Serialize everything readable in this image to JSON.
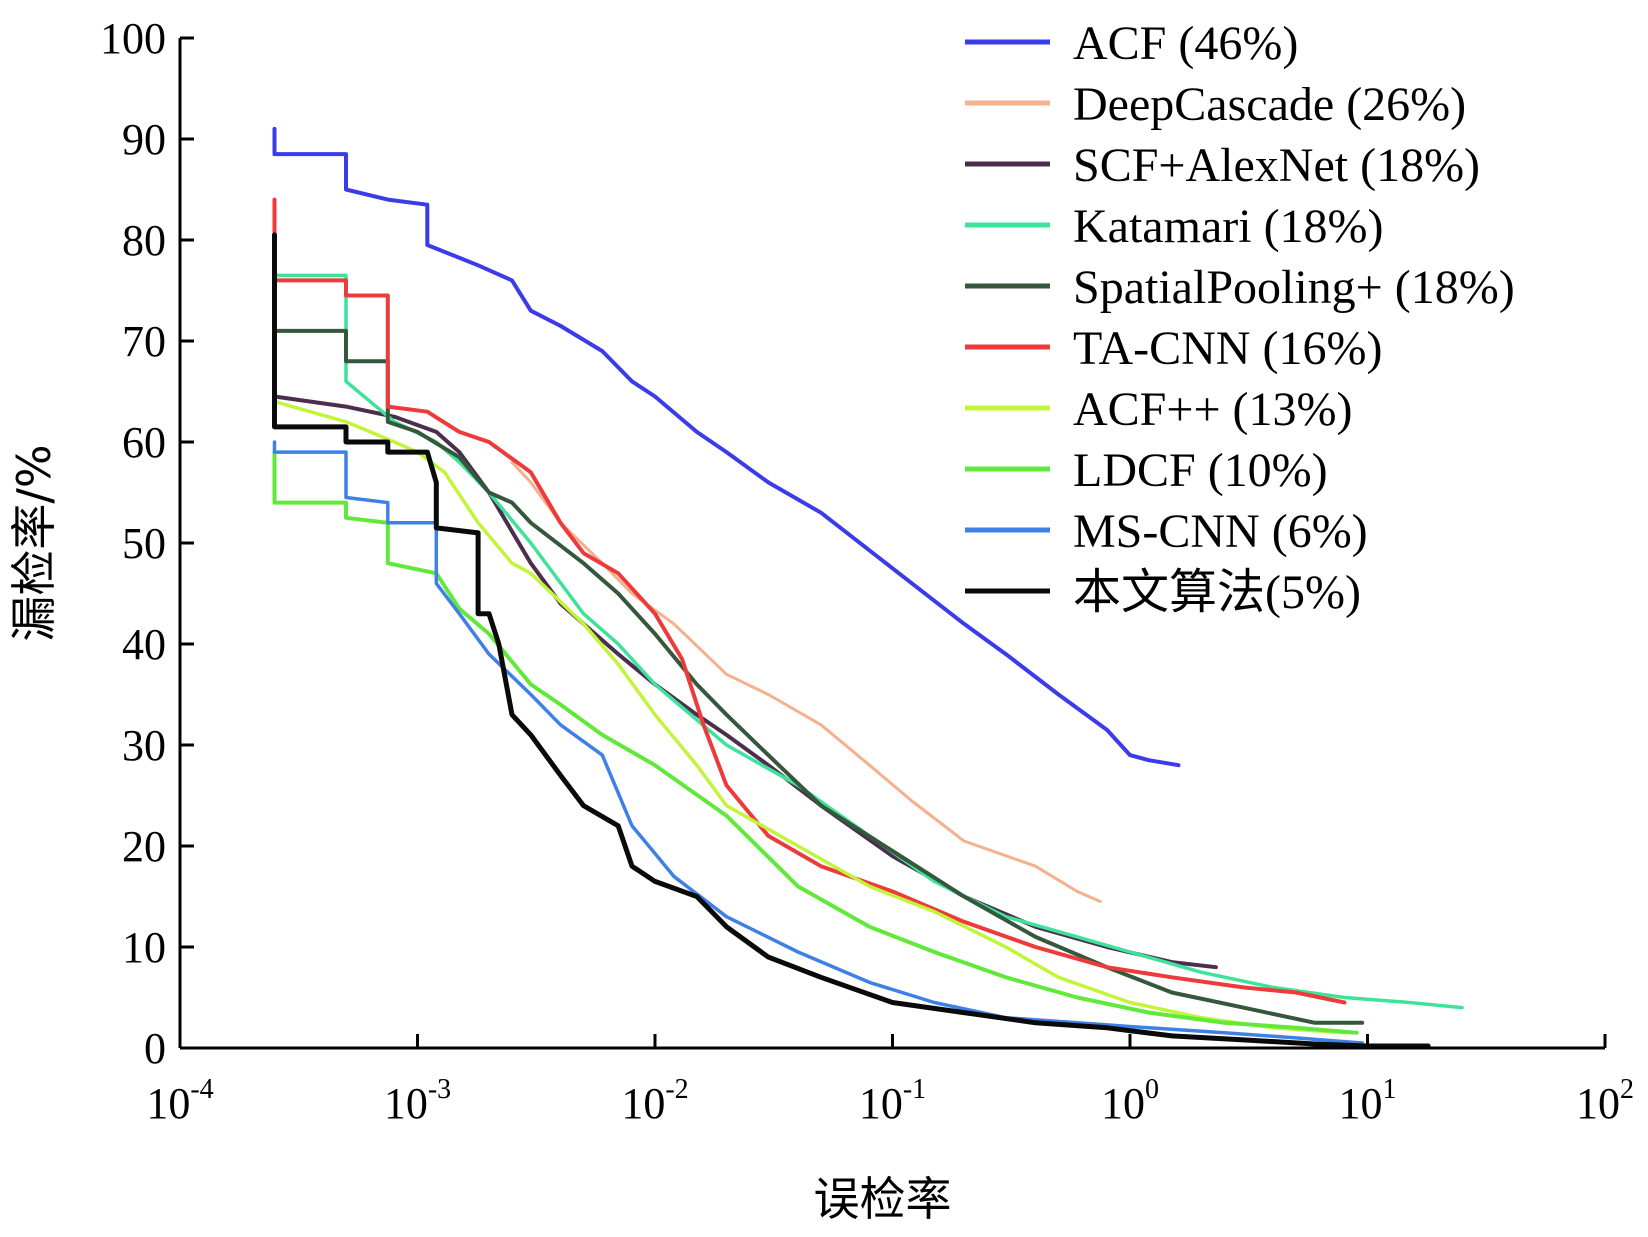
{
  "chart_data": {
    "type": "line",
    "xlabel": "误检率",
    "ylabel": "漏检率/%",
    "x_scale": "log",
    "xlim": [
      0.0001,
      100
    ],
    "ylim": [
      0,
      100
    ],
    "x_ticks": [
      {
        "value": 0.0001,
        "base": "10",
        "exp": "-4"
      },
      {
        "value": 0.001,
        "base": "10",
        "exp": "-3"
      },
      {
        "value": 0.01,
        "base": "10",
        "exp": "-2"
      },
      {
        "value": 0.1,
        "base": "10",
        "exp": "-1"
      },
      {
        "value": 1,
        "base": "10",
        "exp": "0"
      },
      {
        "value": 10,
        "base": "10",
        "exp": "1"
      },
      {
        "value": 100,
        "base": "10",
        "exp": "2"
      }
    ],
    "y_ticks": [
      "0",
      "10",
      "20",
      "30",
      "40",
      "50",
      "60",
      "70",
      "80",
      "90",
      "100"
    ],
    "grid": false,
    "legend_position": "top-right",
    "series": [
      {
        "name": "ACF (46%)",
        "color": "#3b3bea",
        "width": 4,
        "points": [
          [
            0.00025,
            91
          ],
          [
            0.00025,
            88.5
          ],
          [
            0.0005,
            88.5
          ],
          [
            0.0005,
            85
          ],
          [
            0.00075,
            84
          ],
          [
            0.0011,
            83.5
          ],
          [
            0.0011,
            79.5
          ],
          [
            0.0018,
            77.5
          ],
          [
            0.0025,
            76
          ],
          [
            0.003,
            73
          ],
          [
            0.004,
            71.5
          ],
          [
            0.006,
            69
          ],
          [
            0.008,
            66
          ],
          [
            0.01,
            64.5
          ],
          [
            0.015,
            61
          ],
          [
            0.02,
            59
          ],
          [
            0.03,
            56
          ],
          [
            0.05,
            53
          ],
          [
            0.1,
            47.5
          ],
          [
            0.2,
            42
          ],
          [
            0.3,
            39
          ],
          [
            0.5,
            35
          ],
          [
            0.8,
            31.5
          ],
          [
            1.0,
            29
          ],
          [
            1.2,
            28.5
          ],
          [
            1.6,
            28
          ]
        ]
      },
      {
        "name": "DeepCascade (26%)",
        "color": "#f5b08c",
        "width": 3,
        "points": [
          [
            0.0025,
            58
          ],
          [
            0.003,
            56
          ],
          [
            0.004,
            52
          ],
          [
            0.006,
            48
          ],
          [
            0.008,
            45
          ],
          [
            0.012,
            42
          ],
          [
            0.02,
            37
          ],
          [
            0.03,
            35
          ],
          [
            0.05,
            32
          ],
          [
            0.08,
            28
          ],
          [
            0.12,
            24.5
          ],
          [
            0.2,
            20.5
          ],
          [
            0.4,
            18
          ],
          [
            0.6,
            15.5
          ],
          [
            0.75,
            14.5
          ]
        ]
      },
      {
        "name": "SCF+AlexNet (18%)",
        "color": "#4d2d4e",
        "width": 4,
        "points": [
          [
            0.00025,
            66
          ],
          [
            0.00025,
            64.5
          ],
          [
            0.0005,
            63.5
          ],
          [
            0.0008,
            62.5
          ],
          [
            0.0012,
            61
          ],
          [
            0.0015,
            59
          ],
          [
            0.002,
            55
          ],
          [
            0.003,
            48
          ],
          [
            0.004,
            44
          ],
          [
            0.005,
            42
          ],
          [
            0.007,
            39
          ],
          [
            0.01,
            36
          ],
          [
            0.015,
            33
          ],
          [
            0.02,
            31
          ],
          [
            0.03,
            28
          ],
          [
            0.05,
            24
          ],
          [
            0.1,
            19
          ],
          [
            0.2,
            15
          ],
          [
            0.4,
            12
          ],
          [
            0.8,
            10
          ],
          [
            1.5,
            8.5
          ],
          [
            2.3,
            8
          ]
        ]
      },
      {
        "name": "Katamari (18%)",
        "color": "#3de39a",
        "width": 3.5,
        "points": [
          [
            0.00025,
            76.5
          ],
          [
            0.0005,
            76.5
          ],
          [
            0.0005,
            66
          ],
          [
            0.0008,
            62
          ],
          [
            0.0012,
            60
          ],
          [
            0.0015,
            58
          ],
          [
            0.002,
            55
          ],
          [
            0.003,
            50
          ],
          [
            0.005,
            43
          ],
          [
            0.007,
            40
          ],
          [
            0.01,
            36
          ],
          [
            0.02,
            30
          ],
          [
            0.04,
            26
          ],
          [
            0.08,
            21
          ],
          [
            0.15,
            16.5
          ],
          [
            0.3,
            13
          ],
          [
            0.6,
            11
          ],
          [
            1.0,
            9.5
          ],
          [
            2.0,
            7.5
          ],
          [
            4.0,
            6
          ],
          [
            8.0,
            5
          ],
          [
            15,
            4.5
          ],
          [
            25,
            4
          ]
        ]
      },
      {
        "name": "SpatialPooling+ (18%)",
        "color": "#35573b",
        "width": 4,
        "points": [
          [
            0.00025,
            71
          ],
          [
            0.0005,
            71
          ],
          [
            0.0005,
            68
          ],
          [
            0.00075,
            68
          ],
          [
            0.00075,
            62
          ],
          [
            0.001,
            61
          ],
          [
            0.0015,
            58.5
          ],
          [
            0.002,
            55
          ],
          [
            0.0025,
            54
          ],
          [
            0.003,
            52
          ],
          [
            0.005,
            48
          ],
          [
            0.007,
            45
          ],
          [
            0.01,
            41
          ],
          [
            0.015,
            36
          ],
          [
            0.02,
            33
          ],
          [
            0.03,
            29
          ],
          [
            0.05,
            24
          ],
          [
            0.1,
            19.5
          ],
          [
            0.2,
            15
          ],
          [
            0.4,
            11
          ],
          [
            0.8,
            8
          ],
          [
            1.5,
            5.5
          ],
          [
            3,
            4
          ],
          [
            6,
            2.5
          ],
          [
            9.5,
            2.5
          ]
        ]
      },
      {
        "name": "TA-CNN (16%)",
        "color": "#ed3b3b",
        "width": 4,
        "points": [
          [
            0.00025,
            84
          ],
          [
            0.00025,
            76
          ],
          [
            0.0005,
            76
          ],
          [
            0.0005,
            74.5
          ],
          [
            0.00075,
            74.5
          ],
          [
            0.00075,
            63.5
          ],
          [
            0.0011,
            63
          ],
          [
            0.0015,
            61
          ],
          [
            0.002,
            60
          ],
          [
            0.003,
            57
          ],
          [
            0.004,
            52
          ],
          [
            0.005,
            49
          ],
          [
            0.007,
            47
          ],
          [
            0.01,
            43
          ],
          [
            0.013,
            38.5
          ],
          [
            0.016,
            32
          ],
          [
            0.02,
            26
          ],
          [
            0.03,
            21
          ],
          [
            0.05,
            18
          ],
          [
            0.1,
            15.5
          ],
          [
            0.2,
            12.5
          ],
          [
            0.4,
            10
          ],
          [
            0.8,
            8
          ],
          [
            1.5,
            7
          ],
          [
            3,
            6
          ],
          [
            5,
            5.5
          ],
          [
            8,
            4.5
          ]
        ]
      },
      {
        "name": "ACF++ (13%)",
        "color": "#c2f53a",
        "width": 3.5,
        "points": [
          [
            0.00025,
            64
          ],
          [
            0.0005,
            62
          ],
          [
            0.0008,
            60
          ],
          [
            0.001,
            59
          ],
          [
            0.0013,
            57
          ],
          [
            0.0018,
            52
          ],
          [
            0.0025,
            48
          ],
          [
            0.003,
            47
          ],
          [
            0.005,
            42
          ],
          [
            0.007,
            38
          ],
          [
            0.01,
            33
          ],
          [
            0.015,
            28
          ],
          [
            0.02,
            24
          ],
          [
            0.04,
            20
          ],
          [
            0.08,
            16
          ],
          [
            0.15,
            13.5
          ],
          [
            0.3,
            10
          ],
          [
            0.5,
            7
          ],
          [
            1.0,
            4.5
          ],
          [
            2.0,
            3
          ],
          [
            4,
            2
          ],
          [
            8,
            1.5
          ]
        ]
      },
      {
        "name": "LDCF (10%)",
        "color": "#60e93a",
        "width": 4,
        "points": [
          [
            0.00025,
            59
          ],
          [
            0.00025,
            54
          ],
          [
            0.0005,
            54
          ],
          [
            0.0005,
            52.5
          ],
          [
            0.00075,
            52
          ],
          [
            0.00075,
            48
          ],
          [
            0.0012,
            47
          ],
          [
            0.0015,
            43.5
          ],
          [
            0.002,
            41
          ],
          [
            0.003,
            36
          ],
          [
            0.004,
            34
          ],
          [
            0.006,
            31
          ],
          [
            0.01,
            28
          ],
          [
            0.02,
            23
          ],
          [
            0.04,
            16
          ],
          [
            0.08,
            12
          ],
          [
            0.15,
            9.5
          ],
          [
            0.3,
            7
          ],
          [
            0.6,
            5
          ],
          [
            1.2,
            3.5
          ],
          [
            2.5,
            2.5
          ],
          [
            5,
            2
          ],
          [
            9,
            1.5
          ]
        ]
      },
      {
        "name": "MS-CNN (6%)",
        "color": "#3f80e6",
        "width": 3.5,
        "points": [
          [
            0.00025,
            60
          ],
          [
            0.00025,
            59
          ],
          [
            0.0005,
            59
          ],
          [
            0.0005,
            54.5
          ],
          [
            0.00075,
            54
          ],
          [
            0.00075,
            52
          ],
          [
            0.0012,
            52
          ],
          [
            0.0012,
            46
          ],
          [
            0.0015,
            43
          ],
          [
            0.002,
            39
          ],
          [
            0.003,
            35
          ],
          [
            0.004,
            32
          ],
          [
            0.006,
            29
          ],
          [
            0.008,
            22
          ],
          [
            0.012,
            17
          ],
          [
            0.02,
            13
          ],
          [
            0.04,
            9.5
          ],
          [
            0.08,
            6.5
          ],
          [
            0.15,
            4.5
          ],
          [
            0.3,
            3
          ],
          [
            0.6,
            2.5
          ],
          [
            1.2,
            2
          ],
          [
            2.5,
            1.5
          ],
          [
            5,
            1
          ],
          [
            9.5,
            0.5
          ]
        ]
      },
      {
        "name": "本文算法(5%)",
        "color": "#0a0a0a",
        "width": 5,
        "points": [
          [
            0.00025,
            80.5
          ],
          [
            0.00025,
            61.5
          ],
          [
            0.0005,
            61.5
          ],
          [
            0.0005,
            60
          ],
          [
            0.00075,
            60
          ],
          [
            0.00075,
            59
          ],
          [
            0.0011,
            59
          ],
          [
            0.0012,
            56
          ],
          [
            0.0012,
            51.5
          ],
          [
            0.0018,
            51
          ],
          [
            0.0018,
            43
          ],
          [
            0.002,
            43
          ],
          [
            0.0022,
            40
          ],
          [
            0.0025,
            33
          ],
          [
            0.003,
            31
          ],
          [
            0.004,
            27
          ],
          [
            0.005,
            24
          ],
          [
            0.007,
            22
          ],
          [
            0.008,
            18
          ],
          [
            0.01,
            16.5
          ],
          [
            0.015,
            15
          ],
          [
            0.02,
            12
          ],
          [
            0.03,
            9
          ],
          [
            0.05,
            7
          ],
          [
            0.1,
            4.5
          ],
          [
            0.2,
            3.5
          ],
          [
            0.4,
            2.5
          ],
          [
            0.8,
            2
          ],
          [
            1.5,
            1.2
          ],
          [
            3,
            0.8
          ],
          [
            6,
            0.4
          ],
          [
            10,
            0.2
          ],
          [
            18,
            0.2
          ]
        ]
      }
    ]
  }
}
